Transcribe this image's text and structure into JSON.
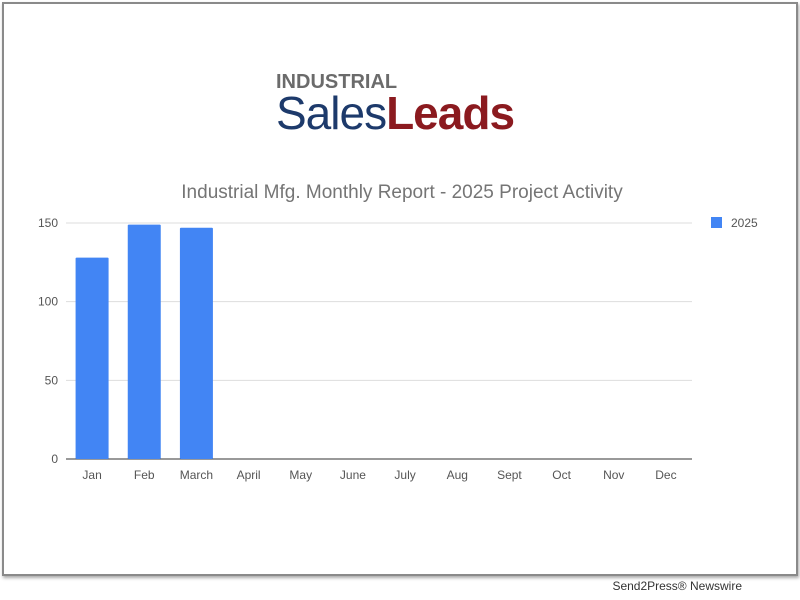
{
  "logo": {
    "top": "INDUSTRIAL",
    "sales": "Sales",
    "leads": "Leads"
  },
  "footer": "Send2Press® Newswire",
  "chart_data": {
    "type": "bar",
    "title": "Industrial Mfg. Monthly Report - 2025 Project Activity",
    "categories": [
      "Jan",
      "Feb",
      "March",
      "April",
      "May",
      "June",
      "July",
      "Aug",
      "Sept",
      "Oct",
      "Nov",
      "Dec"
    ],
    "series": [
      {
        "name": "2025",
        "color": "#4285f4",
        "values": [
          128,
          149,
          147,
          null,
          null,
          null,
          null,
          null,
          null,
          null,
          null,
          null
        ]
      }
    ],
    "yticks": [
      0,
      50,
      100,
      150
    ],
    "ylim": [
      0,
      150
    ],
    "xlabel": "",
    "ylabel": "",
    "grid": true,
    "legend": "right"
  }
}
